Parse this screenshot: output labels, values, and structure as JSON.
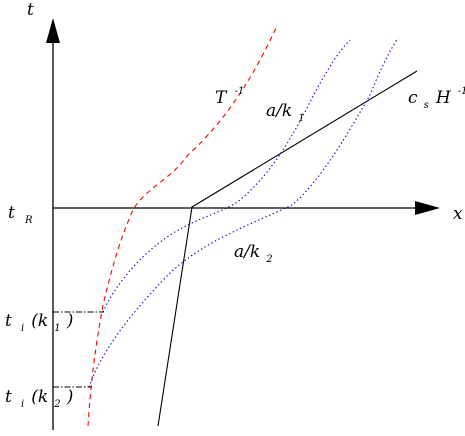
{
  "diagram": {
    "axes": {
      "vertical_label": "t",
      "horizontal_label": "x"
    },
    "labels": {
      "t_R": {
        "main": "t",
        "sub": "R"
      },
      "t_i_k1": {
        "main": "t",
        "sub": "i",
        "paren": "(k",
        "paren_sub": "1",
        "close": ")"
      },
      "t_i_k2": {
        "main": "t",
        "sub": "i",
        "paren": "(k",
        "paren_sub": "2",
        "close": ")"
      },
      "T_inverse": {
        "main": "T",
        "sup": "-1"
      },
      "a_over_k1": {
        "main": "a/k",
        "sub": "1"
      },
      "a_over_k2": {
        "main": "a/k",
        "sub": "2"
      },
      "cs_H_inverse": {
        "c": "c",
        "c_sub": "s",
        "H": "H",
        "sup": "-1"
      }
    },
    "colors": {
      "axes": "#000000",
      "T_inverse_curve": "#ff0000",
      "mode_curves": "#0000cc",
      "horizon_line": "#000000",
      "guide_lines": "#000000"
    },
    "line_styles": {
      "T_inverse_curve": "dashed",
      "mode_curves": "dotted",
      "horizon_line": "solid",
      "guide_lines": "dash-dot"
    }
  }
}
